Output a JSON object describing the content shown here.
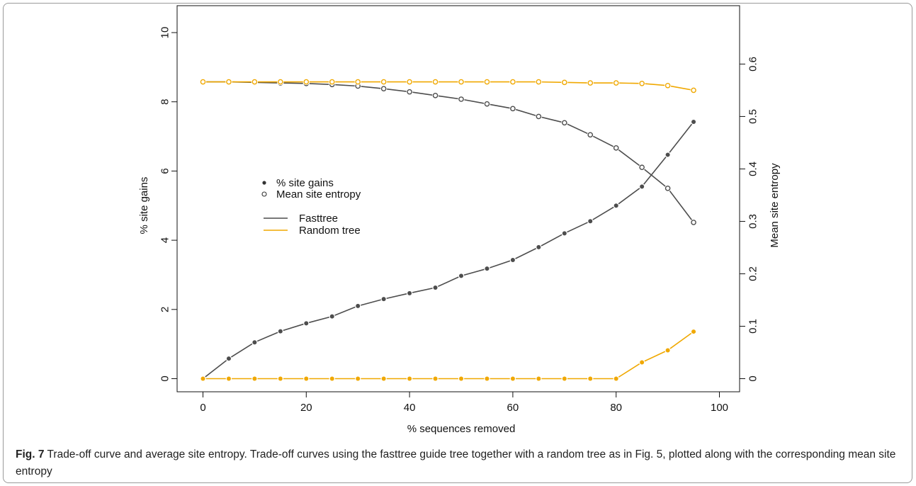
{
  "figure": {
    "label": "Fig. 7",
    "caption": "Trade-off curve and average site entropy. Trade-off curves using the fasttree guide tree together with a random tree as in Fig. 5, plotted along with the corresponding mean site entropy"
  },
  "chart_data": {
    "type": "line",
    "title": "",
    "xlabel": "% sequences removed",
    "ylabel": "% site gains",
    "y2label": "Mean site entropy",
    "xlim": [
      0,
      100
    ],
    "ylim": [
      0,
      10
    ],
    "y2lim": [
      0,
      0.6
    ],
    "x_ticks": [
      0,
      20,
      40,
      60,
      80,
      100
    ],
    "y_ticks": [
      0,
      2,
      4,
      6,
      8,
      10
    ],
    "y2_ticks": [
      0,
      0.1,
      0.2,
      0.3,
      0.4,
      0.5,
      0.6
    ],
    "grid": false,
    "legend": {
      "placement": "center-left",
      "markers": [
        {
          "label": "% site gains",
          "marker": "filled-circle"
        },
        {
          "label": "Mean site entropy",
          "marker": "open-circle"
        }
      ],
      "lines": [
        {
          "label": "Fasttree",
          "color": "#4d4d4d"
        },
        {
          "label": "Random tree",
          "color": "#f0a800"
        }
      ]
    },
    "x": [
      0,
      5,
      10,
      15,
      20,
      25,
      30,
      35,
      40,
      45,
      50,
      55,
      60,
      65,
      70,
      75,
      80,
      85,
      90,
      95
    ],
    "series": [
      {
        "tree": "Fasttree",
        "measure": "% site gains",
        "axis": "left",
        "marker": "filled",
        "color": "#4d4d4d",
        "values": [
          0,
          0.58,
          1.05,
          1.37,
          1.6,
          1.8,
          2.1,
          2.3,
          2.47,
          2.63,
          2.97,
          3.18,
          3.43,
          3.8,
          4.2,
          4.55,
          5.0,
          5.55,
          6.47,
          7.42
        ]
      },
      {
        "tree": "Random tree",
        "measure": "% site gains",
        "axis": "left",
        "marker": "filled",
        "color": "#f0a800",
        "values": [
          0,
          0,
          0,
          0,
          0,
          0,
          0,
          0,
          0,
          0,
          0,
          0,
          0,
          0,
          0,
          0,
          0,
          0.47,
          0.82,
          1.36
        ]
      },
      {
        "tree": "Fasttree",
        "measure": "Mean site entropy",
        "axis": "right",
        "marker": "open",
        "color": "#4d4d4d",
        "values": [
          0.566,
          0.566,
          0.565,
          0.564,
          0.563,
          0.561,
          0.558,
          0.553,
          0.547,
          0.54,
          0.533,
          0.524,
          0.515,
          0.5,
          0.488,
          0.465,
          0.44,
          0.403,
          0.363,
          0.298
        ]
      },
      {
        "tree": "Random tree",
        "measure": "Mean site entropy",
        "axis": "right",
        "marker": "open",
        "color": "#f0a800",
        "values": [
          0.566,
          0.566,
          0.566,
          0.566,
          0.566,
          0.566,
          0.566,
          0.566,
          0.566,
          0.566,
          0.566,
          0.566,
          0.566,
          0.566,
          0.565,
          0.564,
          0.564,
          0.563,
          0.559,
          0.55
        ]
      }
    ]
  }
}
